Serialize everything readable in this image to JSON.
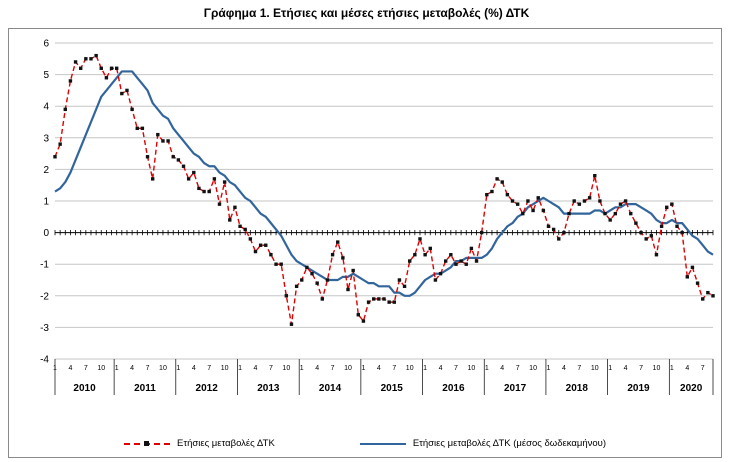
{
  "chart_data": {
    "type": "line",
    "title": "Γράφημα 1. Ετήσιες και μέσες ετήσιες μεταβολές (%) ΔΤΚ",
    "ylim": [
      -4,
      6
    ],
    "y_ticks": [
      6,
      5,
      4,
      3,
      2,
      1,
      0,
      -1,
      -2,
      -3,
      -4
    ],
    "grid": true,
    "legend_position": "bottom",
    "colors": {
      "grid": "#c6c6c6",
      "axis": "#000000",
      "border": "#8a8a8a"
    },
    "x_axis": {
      "tick_months": [
        1,
        4,
        7,
        10
      ],
      "years": [
        {
          "label": "2010",
          "months": 12
        },
        {
          "label": "2011",
          "months": 12
        },
        {
          "label": "2012",
          "months": 12
        },
        {
          "label": "2013",
          "months": 12
        },
        {
          "label": "2014",
          "months": 12
        },
        {
          "label": "2015",
          "months": 12
        },
        {
          "label": "2016",
          "months": 12
        },
        {
          "label": "2017",
          "months": 12
        },
        {
          "label": "2018",
          "months": 12
        },
        {
          "label": "2019",
          "months": 12
        },
        {
          "label": "2020",
          "months": 9
        }
      ]
    },
    "series": [
      {
        "name": "Ετήσιες μεταβολές ΔΤΚ",
        "style": "dashed",
        "color": "#e00000",
        "marker": "square",
        "marker_color": "#111111",
        "values": [
          2.4,
          2.8,
          3.9,
          4.8,
          5.4,
          5.2,
          5.5,
          5.5,
          5.6,
          5.2,
          4.9,
          5.2,
          5.2,
          4.4,
          4.5,
          3.9,
          3.3,
          3.3,
          2.4,
          1.7,
          3.1,
          2.9,
          2.9,
          2.4,
          2.3,
          2.1,
          1.7,
          1.9,
          1.4,
          1.3,
          1.3,
          1.7,
          0.9,
          1.6,
          0.4,
          0.8,
          0.2,
          0.1,
          -0.2,
          -0.6,
          -0.4,
          -0.4,
          -0.7,
          -1.0,
          -1.0,
          -2.0,
          -2.9,
          -1.7,
          -1.5,
          -1.1,
          -1.3,
          -1.6,
          -2.1,
          -1.5,
          -0.7,
          -0.3,
          -0.8,
          -1.8,
          -1.2,
          -2.6,
          -2.8,
          -2.2,
          -2.1,
          -2.1,
          -2.1,
          -2.2,
          -2.2,
          -1.5,
          -1.7,
          -0.9,
          -0.7,
          -0.2,
          -0.7,
          -0.5,
          -1.5,
          -1.3,
          -0.9,
          -0.7,
          -1.0,
          -0.9,
          -1.0,
          -0.5,
          -0.9,
          0.0,
          1.2,
          1.3,
          1.7,
          1.6,
          1.2,
          1.0,
          0.9,
          0.6,
          1.0,
          0.7,
          1.1,
          0.7,
          0.2,
          0.1,
          -0.2,
          0.0,
          0.6,
          1.0,
          0.9,
          1.0,
          1.1,
          1.8,
          1.0,
          0.6,
          0.4,
          0.6,
          0.9,
          1.0,
          0.6,
          0.3,
          0.0,
          -0.2,
          -0.1,
          -0.7,
          0.2,
          0.8,
          0.9,
          0.2,
          0.0,
          -1.4,
          -1.1,
          -1.6,
          -2.1,
          -1.9,
          -2.0
        ]
      },
      {
        "name": "Ετήσιες μεταβολές ΔΤΚ (μέσος δωδεκαμήνου)",
        "style": "solid",
        "color": "#31659C",
        "marker": "none",
        "values": [
          1.3,
          1.4,
          1.6,
          1.9,
          2.3,
          2.7,
          3.1,
          3.5,
          3.9,
          4.3,
          4.5,
          4.7,
          4.9,
          5.1,
          5.1,
          5.1,
          4.9,
          4.7,
          4.5,
          4.1,
          3.9,
          3.7,
          3.6,
          3.3,
          3.1,
          2.9,
          2.7,
          2.5,
          2.4,
          2.2,
          2.1,
          2.1,
          1.9,
          1.8,
          1.6,
          1.5,
          1.3,
          1.1,
          1.0,
          0.8,
          0.6,
          0.5,
          0.3,
          0.1,
          -0.1,
          -0.4,
          -0.7,
          -0.9,
          -1.0,
          -1.1,
          -1.2,
          -1.3,
          -1.4,
          -1.5,
          -1.5,
          -1.5,
          -1.4,
          -1.4,
          -1.3,
          -1.4,
          -1.5,
          -1.6,
          -1.6,
          -1.7,
          -1.7,
          -1.7,
          -1.9,
          -1.9,
          -2.0,
          -2.0,
          -1.9,
          -1.7,
          -1.5,
          -1.4,
          -1.3,
          -1.3,
          -1.2,
          -1.1,
          -0.9,
          -0.9,
          -0.8,
          -0.8,
          -0.8,
          -0.8,
          -0.7,
          -0.5,
          -0.2,
          0.0,
          0.2,
          0.3,
          0.5,
          0.6,
          0.8,
          0.9,
          1.0,
          1.1,
          1.0,
          0.9,
          0.8,
          0.6,
          0.6,
          0.6,
          0.6,
          0.6,
          0.6,
          0.7,
          0.7,
          0.6,
          0.7,
          0.8,
          0.8,
          0.9,
          0.9,
          0.9,
          0.8,
          0.7,
          0.6,
          0.4,
          0.3,
          0.3,
          0.4,
          0.3,
          0.3,
          0.1,
          -0.1,
          -0.2,
          -0.4,
          -0.6,
          -0.7
        ]
      }
    ]
  }
}
